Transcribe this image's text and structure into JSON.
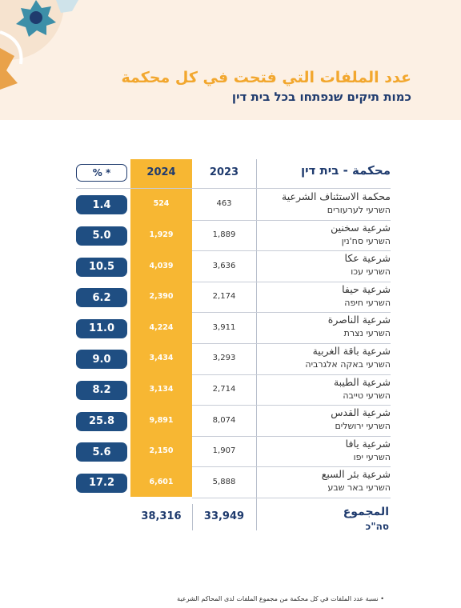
{
  "header": {
    "title_ar": "عدد الملفات التي فتحت في كل محكمة",
    "title_he": "כמות תיקים שנפתחו בכל בית דין"
  },
  "table": {
    "columns": [
      "محكمة - בית דין",
      "2023",
      "2024",
      "% *"
    ],
    "rows": [
      {
        "name_ar": "محكمة الاستئناف الشرعية",
        "name_he": "השרעי לערעורים",
        "y2023": "463",
        "y2024": "524",
        "percent": "1.4"
      },
      {
        "name_ar": "شرعية سخنين",
        "name_he": "השרעי סח'נין",
        "y2023": "1,889",
        "y2024": "1,929",
        "percent": "5.0"
      },
      {
        "name_ar": "شرعية عكا",
        "name_he": "השרעי עכו",
        "y2023": "3,636",
        "y2024": "4,039",
        "percent": "10.5"
      },
      {
        "name_ar": "شرعية حيفا",
        "name_he": "השרעי חיפה",
        "y2023": "2,174",
        "y2024": "2,390",
        "percent": "6.2"
      },
      {
        "name_ar": "شرعية الناصرة",
        "name_he": "השרעי נצרת",
        "y2023": "3,911",
        "y2024": "4,224",
        "percent": "11.0"
      },
      {
        "name_ar": "شرعية باقة الغربية",
        "name_he": "השרעי באקה אלגרביה",
        "y2023": "3,293",
        "y2024": "3,434",
        "percent": "9.0"
      },
      {
        "name_ar": "شرعية الطيبة",
        "name_he": "השרעי טייבה",
        "y2023": "2,714",
        "y2024": "3,134",
        "percent": "8.2"
      },
      {
        "name_ar": "شرعية القدس",
        "name_he": "השרעי ירושלים",
        "y2023": "8,074",
        "y2024": "9,891",
        "percent": "25.8"
      },
      {
        "name_ar": "شرعية يافا",
        "name_he": "השרעי יפו",
        "y2023": "1,907",
        "y2024": "2,150",
        "percent": "5.6"
      },
      {
        "name_ar": "شرعية بئر السبع",
        "name_he": "השרעי באר שבע",
        "y2023": "5,888",
        "y2024": "6,601",
        "percent": "17.2"
      }
    ],
    "total": {
      "label_ar": "المجموع",
      "label_he": "סה\"כ",
      "y2023": "33,949",
      "y2024": "38,316"
    }
  },
  "footnote": "• نسبة عدد الملفات في كل محكمة من مجموع الملفات لدى المحاكم الشرعية"
}
